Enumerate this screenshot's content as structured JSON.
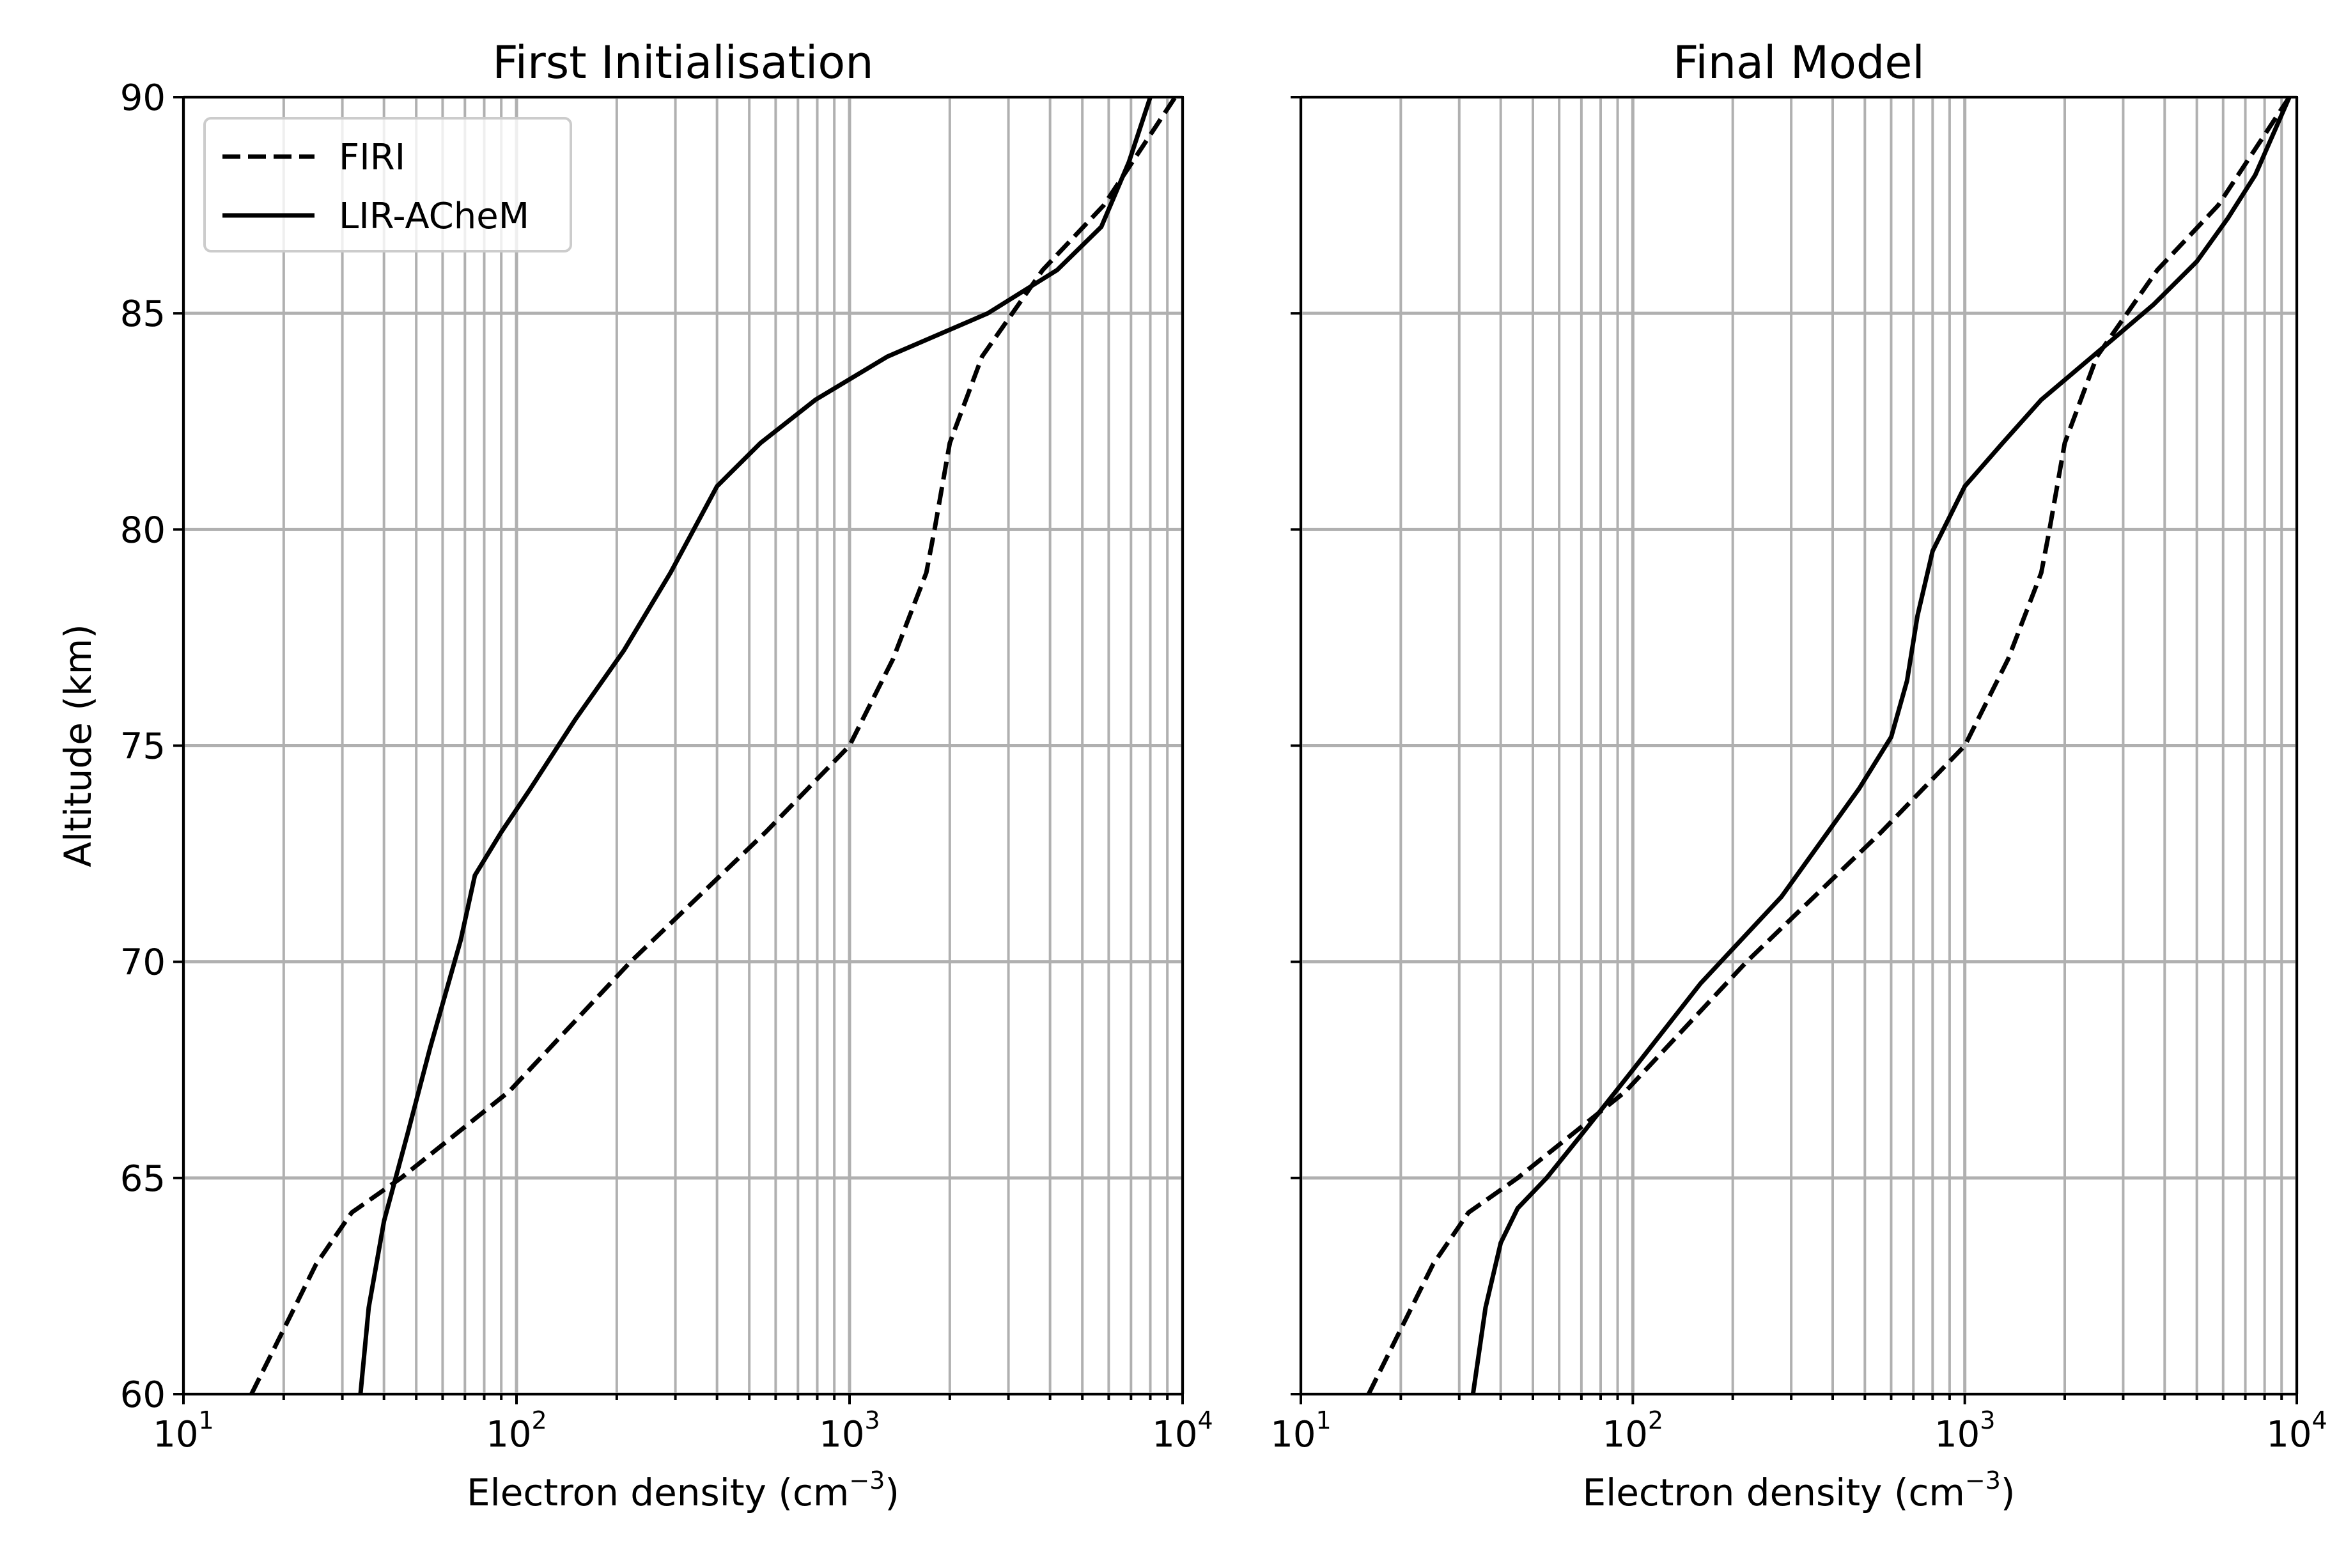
{
  "chart_data": [
    {
      "type": "line",
      "title": "First Initialisation",
      "xlabel": "Electron density (cm",
      "xlabel_exp": "−3",
      "xlabel_close": ")",
      "ylabel": "Altitude (km)",
      "xscale": "log",
      "xlim": [
        10,
        10000
      ],
      "ylim": [
        60,
        90
      ],
      "grid": true,
      "legend": "top-left",
      "xticks": [
        {
          "base": "10",
          "exp": "1",
          "value": 10
        },
        {
          "base": "10",
          "exp": "2",
          "value": 100
        },
        {
          "base": "10",
          "exp": "3",
          "value": 1000
        },
        {
          "base": "10",
          "exp": "4",
          "value": 10000
        }
      ],
      "yticks": [
        {
          "label": "60",
          "value": 60
        },
        {
          "label": "65",
          "value": 65
        },
        {
          "label": "70",
          "value": 70
        },
        {
          "label": "75",
          "value": 75
        },
        {
          "label": "80",
          "value": 80
        },
        {
          "label": "85",
          "value": 85
        },
        {
          "label": "90",
          "value": 90
        }
      ],
      "series": [
        {
          "name": "FIRI",
          "style": "dashed",
          "points": [
            [
              16,
              60
            ],
            [
              20,
              61.5
            ],
            [
              25,
              63
            ],
            [
              32,
              64.2
            ],
            [
              45,
              65
            ],
            [
              95,
              67
            ],
            [
              220,
              70
            ],
            [
              560,
              73
            ],
            [
              1000,
              75
            ],
            [
              1350,
              77
            ],
            [
              1700,
              79
            ],
            [
              1800,
              80
            ],
            [
              2000,
              82
            ],
            [
              2500,
              84
            ],
            [
              3800,
              86
            ],
            [
              5800,
              87.5
            ],
            [
              9500,
              90
            ]
          ]
        },
        {
          "name": "LIR-ACheM",
          "style": "solid",
          "points": [
            [
              34,
              60
            ],
            [
              36,
              62
            ],
            [
              40,
              64
            ],
            [
              47,
              66
            ],
            [
              55,
              68
            ],
            [
              68,
              70.5
            ],
            [
              75,
              72
            ],
            [
              90,
              73
            ],
            [
              110,
              74
            ],
            [
              150,
              75.6
            ],
            [
              210,
              77.2
            ],
            [
              290,
              79
            ],
            [
              400,
              81
            ],
            [
              540,
              82
            ],
            [
              790,
              83
            ],
            [
              1300,
              84
            ],
            [
              2600,
              85
            ],
            [
              4200,
              86
            ],
            [
              5700,
              87
            ],
            [
              6900,
              88.5
            ],
            [
              8000,
              90
            ]
          ]
        }
      ]
    },
    {
      "type": "line",
      "title": "Final Model",
      "xlabel": "Electron density (cm",
      "xlabel_exp": "−3",
      "xlabel_close": ")",
      "ylabel": "",
      "xscale": "log",
      "xlim": [
        10,
        10000
      ],
      "ylim": [
        60,
        90
      ],
      "grid": true,
      "xticks": [
        {
          "base": "10",
          "exp": "1",
          "value": 10
        },
        {
          "base": "10",
          "exp": "2",
          "value": 100
        },
        {
          "base": "10",
          "exp": "3",
          "value": 1000
        },
        {
          "base": "10",
          "exp": "4",
          "value": 10000
        }
      ],
      "series": [
        {
          "name": "FIRI",
          "style": "dashed",
          "points": [
            [
              16,
              60
            ],
            [
              20,
              61.5
            ],
            [
              25,
              63
            ],
            [
              32,
              64.2
            ],
            [
              45,
              65
            ],
            [
              95,
              67
            ],
            [
              220,
              70
            ],
            [
              560,
              73
            ],
            [
              1000,
              75
            ],
            [
              1350,
              77
            ],
            [
              1700,
              79
            ],
            [
              1800,
              80
            ],
            [
              2000,
              82
            ],
            [
              2500,
              84
            ],
            [
              3800,
              86
            ],
            [
              5800,
              87.5
            ],
            [
              9500,
              90
            ]
          ]
        },
        {
          "name": "LIR-ACheM",
          "style": "solid",
          "points": [
            [
              33,
              60
            ],
            [
              36,
              62
            ],
            [
              40,
              63.5
            ],
            [
              45,
              64.3
            ],
            [
              55,
              65
            ],
            [
              70,
              66
            ],
            [
              100,
              67.5
            ],
            [
              160,
              69.5
            ],
            [
              280,
              71.5
            ],
            [
              480,
              74
            ],
            [
              600,
              75.2
            ],
            [
              670,
              76.5
            ],
            [
              720,
              78
            ],
            [
              800,
              79.5
            ],
            [
              1000,
              81
            ],
            [
              1300,
              82
            ],
            [
              1700,
              83
            ],
            [
              2600,
              84.2
            ],
            [
              3700,
              85.2
            ],
            [
              5000,
              86.2
            ],
            [
              6200,
              87.2
            ],
            [
              7500,
              88.2
            ],
            [
              9500,
              90
            ]
          ]
        }
      ]
    }
  ]
}
